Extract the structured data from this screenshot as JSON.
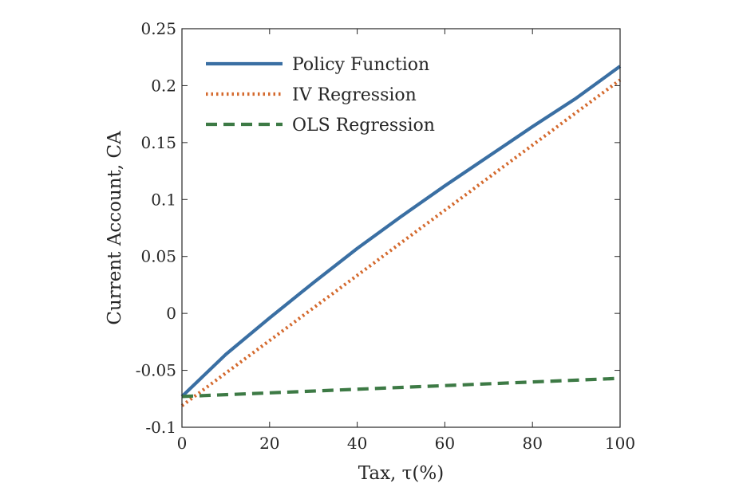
{
  "chart_data": {
    "type": "line",
    "xlabel": "Tax, τ(%)",
    "ylabel": "Current Account, CA",
    "xlim": [
      0,
      100
    ],
    "ylim": [
      -0.1,
      0.25
    ],
    "xticks": [
      "0",
      "20",
      "40",
      "60",
      "80",
      "100"
    ],
    "yticks": [
      "-0.1",
      "-0.05",
      "0",
      "0.05",
      "0.1",
      "0.15",
      "0.2",
      "0.25"
    ],
    "grid": false,
    "legend_position": "top-left",
    "series": [
      {
        "name": "Policy Function",
        "color": "#3a6fa3",
        "style": "solid",
        "x": [
          0,
          10,
          20,
          30,
          40,
          50,
          60,
          70,
          80,
          90,
          100
        ],
        "y": [
          -0.073,
          -0.036,
          -0.004,
          0.027,
          0.057,
          0.085,
          0.112,
          0.138,
          0.164,
          0.189,
          0.217
        ]
      },
      {
        "name": "IV Regression",
        "color": "#d4692d",
        "style": "dotted",
        "x": [
          0,
          100
        ],
        "y": [
          -0.081,
          0.205
        ]
      },
      {
        "name": "OLS Regression",
        "color": "#3d7a45",
        "style": "dashed",
        "x": [
          0,
          100
        ],
        "y": [
          -0.073,
          -0.057
        ]
      }
    ]
  }
}
